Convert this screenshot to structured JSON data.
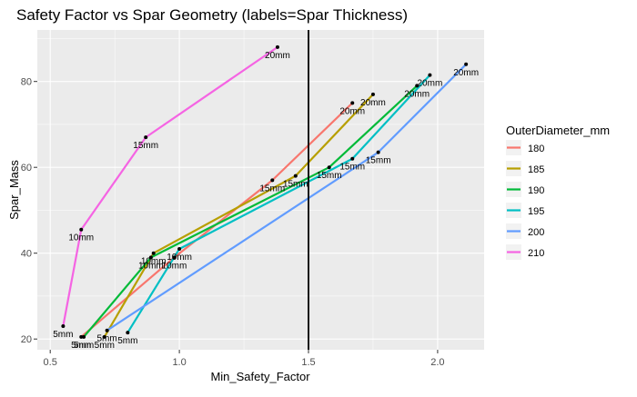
{
  "chart_data": {
    "type": "line",
    "title": "Safety Factor vs Spar Geometry (labels=Spar Thickness)",
    "xlabel": "Min_Safety_Factor",
    "ylabel": "Spar_Mass",
    "xlim": [
      0.45,
      2.18
    ],
    "ylim": [
      17.5,
      92.0
    ],
    "x_ticks": [
      0.5,
      1.0,
      1.5,
      2.0
    ],
    "x_tick_labels": [
      "0.5",
      "1.0",
      "1.5",
      "2.0"
    ],
    "y_ticks": [
      20,
      40,
      60,
      80
    ],
    "y_tick_labels": [
      "20",
      "40",
      "60",
      "80"
    ],
    "grid": true,
    "background": "#ebebeb",
    "legend": {
      "title": "OuterDiameter_mm",
      "position": "right"
    },
    "vline": {
      "x": 1.5,
      "color": "#000000"
    },
    "series": [
      {
        "name": "180",
        "color": "#F8766D",
        "x": [
          0.62,
          0.98,
          1.36,
          1.67
        ],
        "y": [
          20.5,
          39.0,
          57.0,
          75.0
        ],
        "labels": [
          "5mm",
          "10mm",
          "15mm",
          "20mm"
        ]
      },
      {
        "name": "185",
        "color": "#B79F00",
        "x": [
          0.71,
          0.9,
          1.45,
          1.75
        ],
        "y": [
          20.5,
          40.0,
          58.0,
          77.0
        ],
        "labels": [
          "5mm",
          "10mm",
          "15mm",
          "20mm"
        ]
      },
      {
        "name": "190",
        "color": "#00BA38",
        "x": [
          0.63,
          0.89,
          1.58,
          1.92
        ],
        "y": [
          20.5,
          39.0,
          60.0,
          79.0
        ],
        "labels": [
          "5mm",
          "10mm",
          "15mm",
          "20mm"
        ]
      },
      {
        "name": "195",
        "color": "#00BFC4",
        "x": [
          0.8,
          1.0,
          1.67,
          1.97
        ],
        "y": [
          21.5,
          41.0,
          62.0,
          81.5
        ],
        "labels": [
          "5mm",
          "10mm",
          "15mm",
          "20mm"
        ]
      },
      {
        "name": "200",
        "color": "#619CFF",
        "x": [
          0.72,
          1.77,
          2.11
        ],
        "y": [
          22.0,
          63.5,
          84.0
        ],
        "labels": [
          "5mm",
          "15mm",
          "20mm"
        ]
      },
      {
        "name": "210",
        "color": "#F564E3",
        "x": [
          0.55,
          0.62,
          0.87,
          1.38
        ],
        "y": [
          23.0,
          45.5,
          67.0,
          88.0
        ],
        "labels": [
          "5mm",
          "10mm",
          "15mm",
          "20mm"
        ]
      }
    ]
  }
}
